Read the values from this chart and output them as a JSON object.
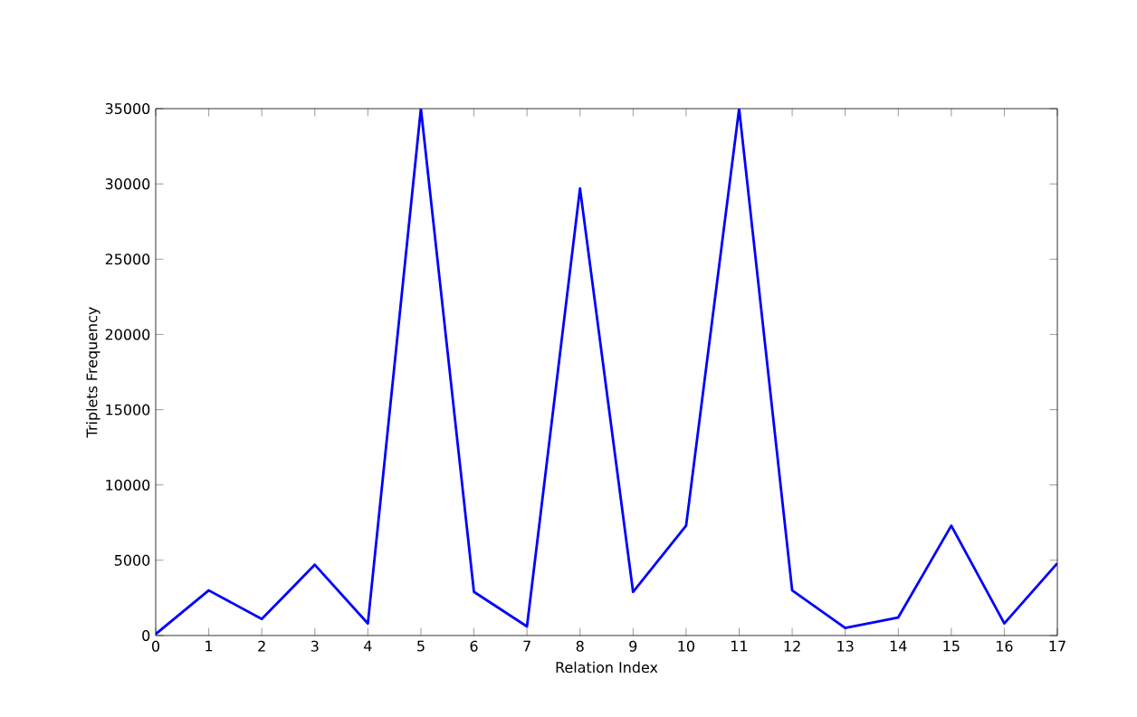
{
  "chart_data": {
    "type": "line",
    "xlabel": "Relation Index",
    "ylabel": "Triplets Frequency",
    "x": [
      0,
      1,
      2,
      3,
      4,
      5,
      6,
      7,
      8,
      9,
      10,
      11,
      12,
      13,
      14,
      15,
      16,
      17
    ],
    "series": [
      {
        "color": "#0000ff",
        "values": [
          100,
          3000,
          1100,
          4700,
          800,
          35000,
          2900,
          600,
          29700,
          2900,
          7300,
          35000,
          3000,
          500,
          1200,
          7300,
          800,
          4800
        ]
      }
    ],
    "xlim": [
      0,
      17
    ],
    "ylim": [
      0,
      35000
    ],
    "xticks": [
      0,
      1,
      2,
      3,
      4,
      5,
      6,
      7,
      8,
      9,
      10,
      11,
      12,
      13,
      14,
      15,
      16,
      17
    ],
    "yticks": [
      0,
      5000,
      10000,
      15000,
      20000,
      25000,
      30000,
      35000
    ],
    "marker": "none",
    "line_style": "solid"
  }
}
